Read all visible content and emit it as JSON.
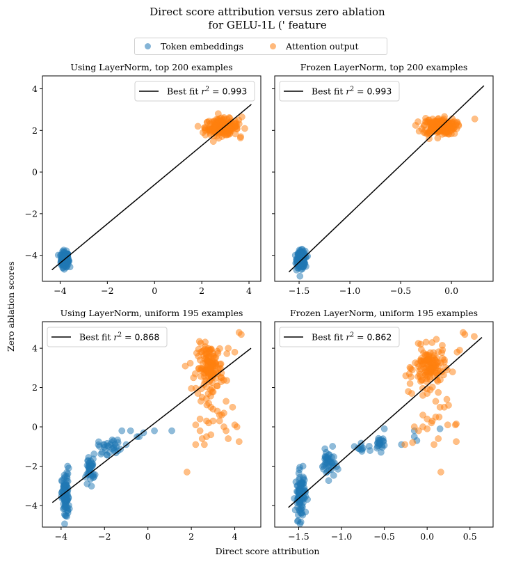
{
  "figure": {
    "title_line1": "Direct score attribution versus zero ablation",
    "title_line2": "for GELU-1L (' feature",
    "xlabel": "Direct score attribution",
    "ylabel": "Zero ablation scores",
    "legend": [
      {
        "label": "Token embeddings",
        "color": "#1f77b4"
      },
      {
        "label": "Attention output",
        "color": "#ff7f0e"
      }
    ]
  },
  "chart_data": [
    {
      "type": "scatter",
      "title": "Using LayerNorm, top 200 examples",
      "xlim": [
        -4.75,
        4.5
      ],
      "ylim": [
        -5.25,
        4.62
      ],
      "xticks": [
        -4,
        -2,
        0,
        2,
        4
      ],
      "xticklabels": [
        "−4",
        "−2",
        "0",
        "2",
        "4"
      ],
      "yticks": [
        -4,
        -2,
        0,
        2,
        4
      ],
      "yticklabels": [
        "−4",
        "−2",
        "0",
        "2",
        "4"
      ],
      "show_yticklabels": true,
      "fit": {
        "label": "Best fit r² = 0.993",
        "r2": "0.993",
        "x": [
          -4.35,
          4.1
        ],
        "y": [
          -4.7,
          3.25
        ]
      },
      "legend_position": "upper right",
      "series": [
        {
          "name": "Token embeddings",
          "cluster": {
            "cx": -3.8,
            "cy": -4.2,
            "sx": 0.08,
            "sy": 0.18,
            "n": 200
          }
        },
        {
          "name": "Attention output",
          "cluster": {
            "cx": 2.85,
            "cy": 2.15,
            "sx": 0.35,
            "sy": 0.2,
            "n": 200
          },
          "points": [
            [
              3.65,
              1.7
            ],
            [
              3.7,
              2.65
            ],
            [
              2.05,
              1.9
            ]
          ]
        }
      ]
    },
    {
      "type": "scatter",
      "title": "Frozen LayerNorm, top 200 examples",
      "xlim": [
        -1.74,
        0.41
      ],
      "ylim": [
        -5.25,
        4.62
      ],
      "xticks": [
        -1.5,
        -1.0,
        -0.5,
        0.0
      ],
      "xticklabels": [
        "−1.5",
        "−1.0",
        "−0.5",
        "0.0"
      ],
      "yticks": [
        -4,
        -2,
        0,
        2,
        4
      ],
      "yticklabels": [
        "",
        "",
        "",
        "",
        ""
      ],
      "show_yticklabels": false,
      "fit": {
        "label": "Best fit r² = 0.993",
        "r2": "0.993",
        "x": [
          -1.6,
          0.32
        ],
        "y": [
          -4.8,
          4.15
        ]
      },
      "legend_position": "upper left",
      "series": [
        {
          "name": "Token embeddings",
          "cluster": {
            "cx": -1.48,
            "cy": -4.2,
            "sx": 0.02,
            "sy": 0.2,
            "n": 200
          }
        },
        {
          "name": "Attention output",
          "cluster": {
            "cx": -0.12,
            "cy": 2.2,
            "sx": 0.08,
            "sy": 0.2,
            "n": 200
          },
          "points": [
            [
              0.23,
              2.55
            ],
            [
              -0.22,
              1.6
            ],
            [
              0.03,
              1.85
            ]
          ]
        }
      ]
    },
    {
      "type": "scatter",
      "title": "Using LayerNorm, uniform 195 examples",
      "xlim": [
        -4.86,
        5.2
      ],
      "ylim": [
        -5.1,
        5.35
      ],
      "xticks": [
        -4,
        -2,
        0,
        2,
        4
      ],
      "xticklabels": [
        "−4",
        "−2",
        "0",
        "2",
        "4"
      ],
      "yticks": [
        -4,
        -2,
        0,
        2,
        4
      ],
      "yticklabels": [
        "−4",
        "−2",
        "0",
        "2",
        "4"
      ],
      "show_yticklabels": true,
      "fit": {
        "label": "Best fit r² = 0.868",
        "r2": "0.868",
        "x": [
          -4.4,
          4.75
        ],
        "y": [
          -3.85,
          4.0
        ]
      },
      "legend_position": "upper left",
      "series": [
        {
          "name": "Token embeddings",
          "clusters": [
            {
              "cx": -3.8,
              "cy": -3.6,
              "sx": 0.08,
              "sy": 0.6,
              "n": 90
            },
            {
              "cx": -2.65,
              "cy": -2.1,
              "sx": 0.1,
              "sy": 0.35,
              "n": 40
            },
            {
              "cx": -1.7,
              "cy": -1.0,
              "sx": 0.3,
              "sy": 0.2,
              "n": 30
            }
          ],
          "points": [
            [
              -3.7,
              -2.0
            ],
            [
              -3.65,
              -2.1
            ],
            [
              -2.8,
              -2.9
            ],
            [
              -1.2,
              -0.2
            ],
            [
              -0.8,
              -0.2
            ],
            [
              -0.4,
              -0.5
            ],
            [
              -0.2,
              -0.3
            ],
            [
              0.3,
              -0.2
            ],
            [
              1.1,
              -0.2
            ],
            [
              -1.0,
              -0.9
            ],
            [
              -0.5,
              -0.5
            ]
          ]
        },
        {
          "name": "Attention output",
          "clusters": [
            {
              "cx": 2.85,
              "cy": 3.0,
              "sx": 0.3,
              "sy": 0.6,
              "n": 140
            }
          ],
          "points": [
            [
              4.2,
              4.8
            ],
            [
              4.3,
              4.7
            ],
            [
              1.8,
              -2.3
            ],
            [
              4.2,
              -0.75
            ],
            [
              2.2,
              -0.9
            ],
            [
              2.6,
              -0.9
            ],
            [
              2.2,
              0.1
            ],
            [
              2.4,
              0.4
            ],
            [
              2.7,
              0.3
            ],
            [
              2.8,
              0.2
            ],
            [
              3.0,
              0.3
            ],
            [
              3.3,
              0.6
            ],
            [
              3.4,
              0.6
            ],
            [
              3.5,
              0.7
            ],
            [
              3.6,
              1.3
            ],
            [
              3.9,
              1.0
            ],
            [
              3.3,
              0.3
            ],
            [
              3.5,
              0.0
            ],
            [
              3.6,
              -0.2
            ],
            [
              3.7,
              -0.6
            ],
            [
              2.4,
              -0.2
            ],
            [
              2.7,
              -0.5
            ],
            [
              2.9,
              -0.4
            ],
            [
              2.5,
              -0.6
            ],
            [
              3.2,
              0.8
            ],
            [
              2.9,
              1.0
            ],
            [
              2.8,
              1.2
            ],
            [
              3.0,
              0.9
            ],
            [
              4.0,
              0.1
            ],
            [
              4.1,
              0.0
            ],
            [
              2.5,
              1.5
            ],
            [
              2.3,
              1.7
            ],
            [
              3.7,
              4.0
            ],
            [
              4.0,
              3.8
            ],
            [
              2.1,
              2.5
            ]
          ]
        }
      ]
    },
    {
      "type": "scatter",
      "title": "Frozen LayerNorm, uniform 195 examples",
      "xlim": [
        -1.78,
        0.77
      ],
      "ylim": [
        -5.1,
        5.35
      ],
      "xticks": [
        -1.5,
        -1.0,
        -0.5,
        0.0,
        0.5
      ],
      "xticklabels": [
        "−1.5",
        "−1.0",
        "−0.5",
        "0.0",
        "0.5"
      ],
      "yticks": [
        -4,
        -2,
        0,
        2,
        4
      ],
      "yticklabels": [
        "",
        "",
        "",
        "",
        ""
      ],
      "show_yticklabels": false,
      "fit": {
        "label": "Best fit r² = 0.862",
        "r2": "0.862",
        "x": [
          -1.62,
          0.64
        ],
        "y": [
          -4.1,
          4.55
        ]
      },
      "legend_position": "upper left",
      "series": [
        {
          "name": "Token embeddings",
          "clusters": [
            {
              "cx": -1.48,
              "cy": -3.5,
              "sx": 0.03,
              "sy": 0.6,
              "n": 90
            },
            {
              "cx": -1.15,
              "cy": -1.9,
              "sx": 0.04,
              "sy": 0.35,
              "n": 40
            },
            {
              "cx": -0.55,
              "cy": -0.8,
              "sx": 0.03,
              "sy": 0.2,
              "n": 20
            },
            {
              "cx": -0.75,
              "cy": -1.1,
              "sx": 0.05,
              "sy": 0.1,
              "n": 10
            }
          ],
          "points": [
            [
              -1.45,
              -2.0
            ],
            [
              -1.18,
              -1.3
            ],
            [
              -0.5,
              -0.1
            ],
            [
              -0.3,
              -0.9
            ],
            [
              -0.15,
              -0.2
            ],
            [
              -0.15,
              -0.5
            ],
            [
              -0.12,
              -0.7
            ],
            [
              0.15,
              -0.1
            ],
            [
              -0.85,
              -1.0
            ]
          ]
        },
        {
          "name": "Attention output",
          "clusters": [
            {
              "cx": 0.03,
              "cy": 3.0,
              "sx": 0.09,
              "sy": 0.5,
              "n": 130
            }
          ],
          "points": [
            [
              0.42,
              4.8
            ],
            [
              0.44,
              4.7
            ],
            [
              0.55,
              4.6
            ],
            [
              0.16,
              -2.3
            ],
            [
              -0.26,
              -0.9
            ],
            [
              -0.17,
              -0.8
            ],
            [
              0.08,
              -0.9
            ],
            [
              0.13,
              -0.6
            ],
            [
              0.34,
              -0.75
            ],
            [
              0.24,
              0.1
            ],
            [
              0.33,
              0.1
            ],
            [
              0.34,
              0.15
            ],
            [
              0.06,
              0.3
            ],
            [
              0.1,
              0.5
            ],
            [
              0.14,
              0.5
            ],
            [
              0.2,
              1.0
            ],
            [
              0.23,
              1.4
            ],
            [
              0.25,
              1.1
            ],
            [
              0.1,
              1.3
            ],
            [
              0.15,
              1.0
            ],
            [
              0.0,
              0.4
            ],
            [
              -0.05,
              0.0
            ],
            [
              -0.1,
              -0.2
            ],
            [
              0.0,
              -0.1
            ],
            [
              0.05,
              0.2
            ],
            [
              -0.15,
              0.0
            ],
            [
              -0.05,
              0.6
            ],
            [
              -0.25,
              2.6
            ],
            [
              -0.2,
              2.2
            ],
            [
              -0.22,
              1.8
            ],
            [
              -0.18,
              1.7
            ],
            [
              0.38,
              3.9
            ],
            [
              0.35,
              3.8
            ],
            [
              -0.05,
              1.6
            ],
            [
              0.0,
              1.7
            ]
          ]
        }
      ]
    }
  ]
}
